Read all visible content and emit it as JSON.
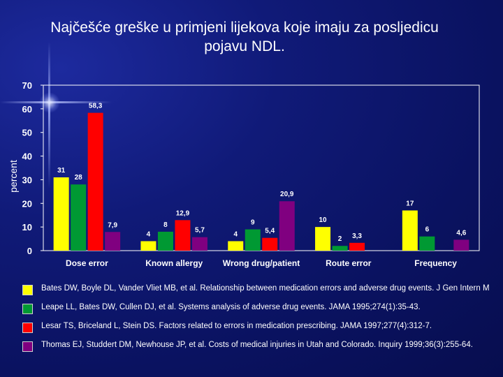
{
  "title": "Najčešće greške u primjeni lijekova koje imaju za posljedicu pojavu NDL.",
  "chart_data": {
    "type": "bar",
    "ylabel": "percent",
    "xlabel": "",
    "ylim": [
      0,
      70
    ],
    "yticks": [
      0,
      10,
      20,
      30,
      40,
      50,
      60,
      70
    ],
    "grid": false,
    "categories": [
      "Dose error",
      "Known allergy",
      "Wrong drug/patient",
      "Route error",
      "Frequency"
    ],
    "series": [
      {
        "color": "#ffff00",
        "values": [
          31,
          4,
          4,
          10,
          17
        ],
        "labels": [
          "31",
          "4",
          "4",
          "10",
          "17"
        ]
      },
      {
        "color": "#009933",
        "values": [
          28,
          8,
          9,
          2,
          6
        ],
        "labels": [
          "28",
          "8",
          "9",
          "2",
          "6"
        ]
      },
      {
        "color": "#ff0000",
        "values": [
          58.3,
          12.9,
          5.4,
          3.3,
          null
        ],
        "labels": [
          "58,3",
          "12,9",
          "5,4",
          "3,3",
          ""
        ]
      },
      {
        "color": "#800080",
        "values": [
          7.9,
          5.7,
          20.9,
          null,
          4.6
        ],
        "labels": [
          "7,9",
          "5,7",
          "20,9",
          "",
          "4,6"
        ]
      }
    ]
  },
  "legend": [
    {
      "color": "#ffff00",
      "text": "Bates DW, Boyle DL, Vander Vliet MB, et al. Relationship between medication errors and adverse drug events. J Gen Intern M"
    },
    {
      "color": "#009933",
      "text": "Leape LL, Bates DW, Cullen DJ, et al. Systems analysis of adverse drug events. JAMA 1995;274(1):35-43."
    },
    {
      "color": "#ff0000",
      "text": "Lesar TS, Briceland L, Stein DS. Factors related to errors in medication prescribing. JAMA 1997;277(4):312-7."
    },
    {
      "color": "#800080",
      "text": "Thomas EJ, Studdert DM, Newhouse JP, et al. Costs of medical injuries in Utah and Colorado. Inquiry 1999;36(3):255-64."
    }
  ]
}
